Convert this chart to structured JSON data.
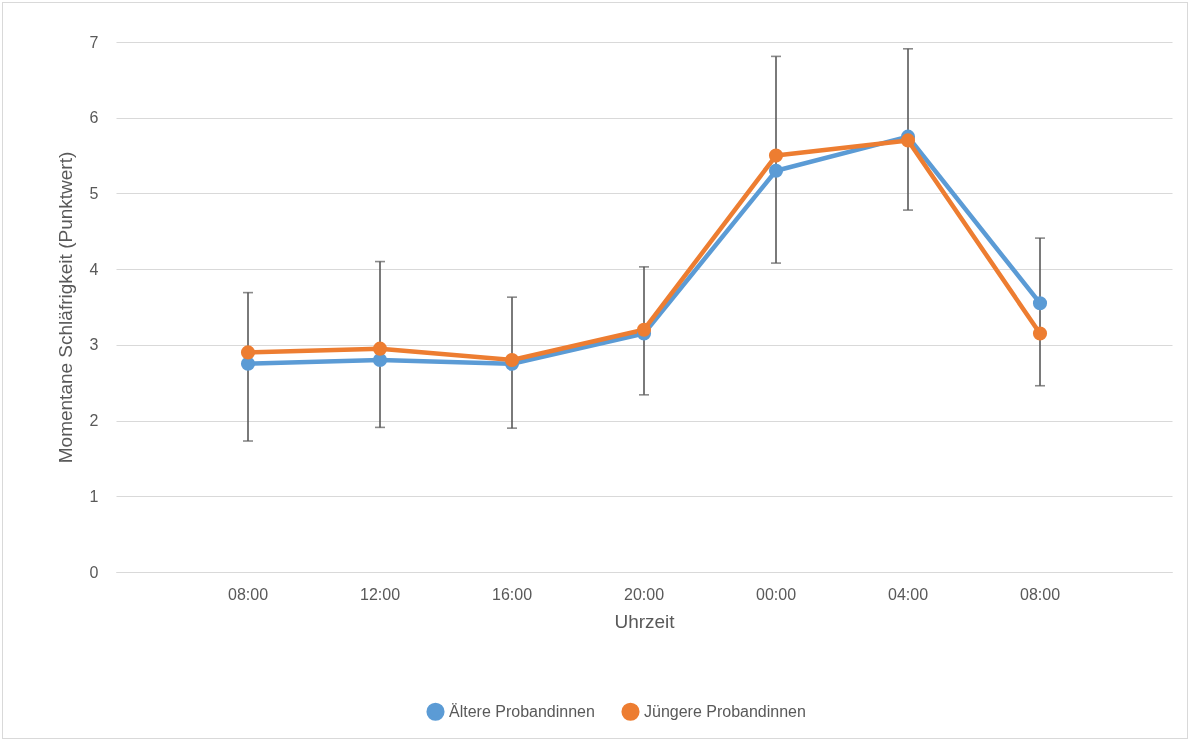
{
  "chart_data": {
    "type": "line",
    "xlabel": "Uhrzeit",
    "ylabel": "Momentane Schläfrigkeit (Punktwert)",
    "categories": [
      "08:00",
      "12:00",
      "16:00",
      "20:00",
      "00:00",
      "04:00",
      "08:00"
    ],
    "series": [
      {
        "name": "Ältere Probandinnen",
        "color": "#5b9bd5",
        "values": [
          2.75,
          2.8,
          2.75,
          3.15,
          5.3,
          5.75,
          3.55
        ],
        "errors": [
          [
            1.73,
            3.69
          ],
          [
            1.91,
            4.1
          ],
          [
            1.9,
            3.63
          ],
          [
            2.34,
            4.03
          ],
          [
            4.08,
            6.81
          ],
          [
            4.78,
            6.91
          ],
          [
            2.46,
            4.41
          ]
        ]
      },
      {
        "name": "Jüngere Probandinnen",
        "color": "#ed7d31",
        "values": [
          2.9,
          2.95,
          2.8,
          3.2,
          5.5,
          5.7,
          3.15
        ]
      }
    ],
    "ylim": [
      0,
      7
    ],
    "yticks": [
      0,
      1,
      2,
      3,
      4,
      5,
      6,
      7
    ],
    "grid": "y",
    "legend": "bottom",
    "marker": "circle",
    "line_style": "solid"
  }
}
